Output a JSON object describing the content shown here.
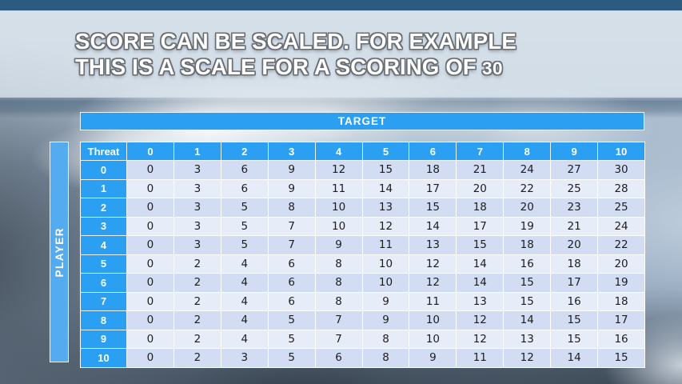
{
  "slide": {
    "title_line1": "SCORE CAN BE SCALED. FOR EXAMPLE",
    "title_line2": "THIS IS A SCALE FOR A SCORING OF",
    "title_line2_number": "30"
  },
  "table": {
    "target_label": "TARGET",
    "player_label": "PLAYER",
    "corner_label": "Threat",
    "column_headers": [
      "0",
      "1",
      "2",
      "3",
      "4",
      "5",
      "6",
      "7",
      "8",
      "9",
      "10"
    ],
    "row_headers": [
      "0",
      "1",
      "2",
      "3",
      "4",
      "5",
      "6",
      "7",
      "8",
      "9",
      "10"
    ],
    "rows": [
      [
        0,
        3,
        6,
        9,
        12,
        15,
        18,
        21,
        24,
        27,
        30
      ],
      [
        0,
        3,
        6,
        9,
        11,
        14,
        17,
        20,
        22,
        25,
        28
      ],
      [
        0,
        3,
        5,
        8,
        10,
        13,
        15,
        18,
        20,
        23,
        25
      ],
      [
        0,
        3,
        5,
        7,
        10,
        12,
        14,
        17,
        19,
        21,
        24
      ],
      [
        0,
        3,
        5,
        7,
        9,
        11,
        13,
        15,
        18,
        20,
        22
      ],
      [
        0,
        2,
        4,
        6,
        8,
        10,
        12,
        14,
        16,
        18,
        20
      ],
      [
        0,
        2,
        4,
        6,
        8,
        10,
        12,
        14,
        15,
        17,
        19
      ],
      [
        0,
        2,
        4,
        6,
        8,
        9,
        11,
        13,
        15,
        16,
        18
      ],
      [
        0,
        2,
        4,
        5,
        7,
        9,
        10,
        12,
        14,
        15,
        17
      ],
      [
        0,
        2,
        4,
        5,
        7,
        8,
        10,
        12,
        13,
        15,
        16
      ],
      [
        0,
        2,
        3,
        5,
        6,
        8,
        9,
        11,
        12,
        14,
        15
      ]
    ]
  },
  "colors": {
    "header_blue": "#2BA0F2",
    "player_bar_blue": "#55ABEF",
    "row_light": "#E7ECF9",
    "row_shaded": "#D2DCF2",
    "top_strip": "#2D5B80",
    "title_text": "#FFFFFF",
    "title_outline": "#686E74"
  }
}
